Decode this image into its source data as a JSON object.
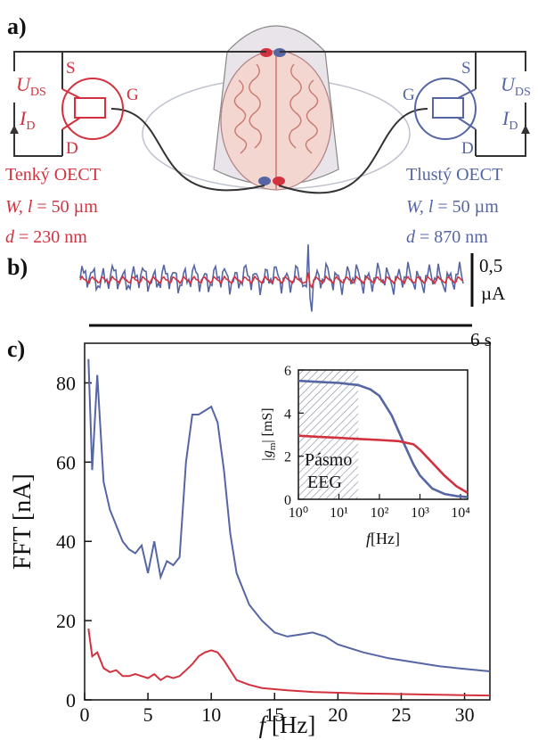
{
  "colors": {
    "red": "#d2323f",
    "blue": "#5666a4",
    "axis": "#111111",
    "brain_fill": "#f2d6cf",
    "brain_lines": "#c9776f",
    "hatch": "#8a8fa0"
  },
  "panels": {
    "a": "a)",
    "b": "b)",
    "c": "c)"
  },
  "panel_a": {
    "left": {
      "uds": "U",
      "uds_sub": "DS",
      "id": "I",
      "id_sub": "D",
      "s": "S",
      "d": "D",
      "g": "G",
      "name": "Tenký OECT",
      "wl_var": "W, l",
      "wl_val": " = 50 µm",
      "d_var": "d",
      "d_val": " = 230 nm"
    },
    "right": {
      "uds": "U",
      "uds_sub": "DS",
      "id": "I",
      "id_sub": "D",
      "s": "S",
      "d": "D",
      "g": "G",
      "name": "Tlustý OECT",
      "wl_var": "W, l",
      "wl_val": " = 50 µm",
      "d_var": "d",
      "d_val": " = 870 nm"
    }
  },
  "panel_b": {
    "scale_y_1": "0,5",
    "scale_y_2": "µA",
    "scale_x": "6 s"
  },
  "chart_data": [
    {
      "type": "line",
      "xlabel_var": "f",
      "xlabel": "[Hz]",
      "ylabel": "FFT [nA]",
      "xlim": [
        0,
        32
      ],
      "ylim": [
        0,
        90
      ],
      "xticks": [
        "0",
        "5",
        "10",
        "15",
        "20",
        "25",
        "30"
      ],
      "yticks": [
        "0",
        "20",
        "40",
        "60",
        "80"
      ],
      "series": [
        {
          "color": "#5666a4",
          "x": [
            0.3,
            0.6,
            1.0,
            1.5,
            2.0,
            2.5,
            3.0,
            3.5,
            4.0,
            4.5,
            5.0,
            5.5,
            6.0,
            6.5,
            7.0,
            7.5,
            8.0,
            8.5,
            9.0,
            9.5,
            10.0,
            10.5,
            11.0,
            11.5,
            12.0,
            13.0,
            14.0,
            15.0,
            16.0,
            17.0,
            18.0,
            19.0,
            20.0,
            22.0,
            24.0,
            26.0,
            28.0,
            30.0,
            32.0
          ],
          "y": [
            86,
            58,
            82,
            55,
            48,
            44,
            40,
            38,
            37,
            39,
            32,
            40,
            31,
            35,
            34,
            36,
            60,
            72,
            72,
            73,
            74,
            70,
            58,
            42,
            32,
            24,
            20,
            17,
            16,
            16.5,
            17,
            16,
            14,
            12,
            10.5,
            9.5,
            8.5,
            7.8,
            7.2
          ]
        },
        {
          "color": "#d2323f",
          "x": [
            0.3,
            0.6,
            1.0,
            1.5,
            2.0,
            2.5,
            3.0,
            3.5,
            4.0,
            4.5,
            5.0,
            5.5,
            6.0,
            6.5,
            7.0,
            7.5,
            8.0,
            8.5,
            9.0,
            9.5,
            10.0,
            10.5,
            11.0,
            11.5,
            12.0,
            13.0,
            14.0,
            16.0,
            18.0,
            20.0,
            22.0,
            24.0,
            26.0,
            28.0,
            30.0,
            32.0
          ],
          "y": [
            18,
            11,
            12,
            8,
            7,
            7.5,
            6,
            6,
            6.5,
            6,
            5.5,
            6.5,
            5,
            6,
            5.5,
            6,
            7.5,
            9,
            11,
            12,
            12.5,
            12,
            10,
            7.5,
            5,
            3.8,
            3,
            2.4,
            2,
            1.8,
            1.6,
            1.5,
            1.4,
            1.3,
            1.2,
            1.1
          ]
        }
      ]
    },
    {
      "type": "line",
      "xscale": "log",
      "xlabel_var": "f",
      "xlabel": "[Hz]",
      "ylabel_var": "|g",
      "ylabel_sub": "m",
      "ylabel": "| [mS]",
      "xlim": [
        1,
        15000
      ],
      "ylim": [
        0,
        6
      ],
      "xticks": [
        "10⁰",
        "10¹",
        "10²",
        "10³",
        "10⁴"
      ],
      "yticks": [
        "0",
        "2",
        "4",
        "6"
      ],
      "band_label_1": "Pásmo",
      "band_label_2": "EEG",
      "band": [
        1,
        30
      ],
      "series": [
        {
          "color": "#5666a4",
          "x": [
            1,
            3,
            10,
            30,
            60,
            100,
            200,
            400,
            700,
            1000,
            2000,
            4000,
            8000,
            15000
          ],
          "y": [
            5.5,
            5.45,
            5.4,
            5.3,
            5.1,
            4.8,
            3.9,
            2.6,
            1.6,
            1.1,
            0.5,
            0.25,
            0.15,
            0.1
          ]
        },
        {
          "color": "#d2323f",
          "x": [
            1,
            3,
            10,
            30,
            100,
            300,
            700,
            1000,
            2000,
            4000,
            8000,
            15000
          ],
          "y": [
            2.95,
            2.9,
            2.85,
            2.8,
            2.75,
            2.7,
            2.55,
            2.3,
            1.7,
            1.1,
            0.6,
            0.3
          ]
        }
      ]
    }
  ]
}
